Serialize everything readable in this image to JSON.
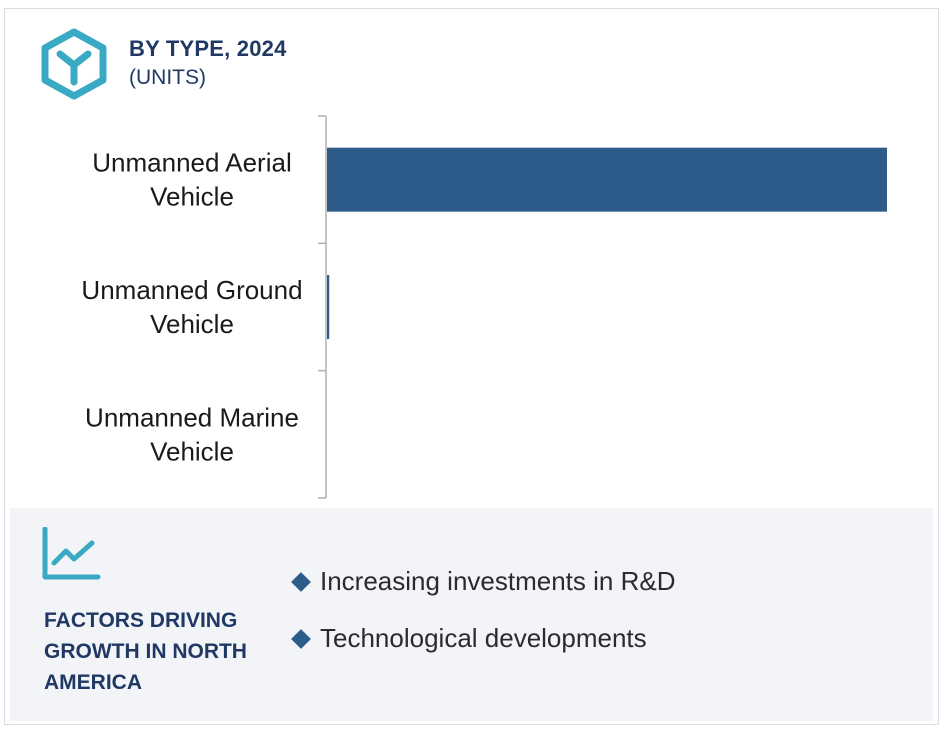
{
  "header": {
    "title": "BY TYPE, 2024",
    "subtitle": "(UNITS)",
    "icon": "box-icon"
  },
  "chart_data": {
    "type": "bar",
    "orientation": "horizontal",
    "categories": [
      [
        "Unmanned Aerial",
        "Vehicle"
      ],
      [
        "Unmanned Ground",
        "Vehicle"
      ],
      [
        "Unmanned Marine",
        "Vehicle"
      ]
    ],
    "values": [
      100,
      0.4,
      0
    ],
    "value_scale": "relative, no axis values printed",
    "xlim": [
      0,
      100
    ],
    "title": "BY TYPE, 2024",
    "subtitle": "(UNITS)",
    "grid": false,
    "legend": "none",
    "bar_color": "#2e5c8a"
  },
  "factors": {
    "icon": "trend-line-icon",
    "title": "FACTORS DRIVING GROWTH IN NORTH AMERICA",
    "items": [
      "Increasing investments in R&D",
      "Technological developments"
    ]
  },
  "colors": {
    "accent": "#3aa9c4",
    "navy": "#1f3864",
    "bar": "#2e5c8a",
    "panel": "#f2f4f8"
  }
}
